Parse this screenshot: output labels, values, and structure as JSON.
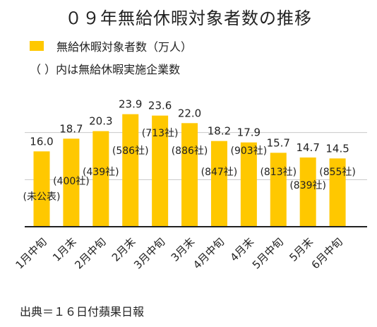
{
  "chart_data": {
    "type": "bar",
    "title": "０９年無給休暇対象者数の推移",
    "legend": [
      {
        "name": "無給休暇対象者数（万人）",
        "color": "#ffc800"
      }
    ],
    "note": "（ ）内は無給休暇実施企業数",
    "categories": [
      "1月中旬",
      "1月末",
      "2月中旬",
      "2月末",
      "3月中旬",
      "3月末",
      "4月中旬",
      "4月末",
      "5月中旬",
      "5月末",
      "6月中旬"
    ],
    "series": [
      {
        "name": "無給休暇対象者数（万人）",
        "values": [
          16.0,
          18.7,
          20.3,
          23.9,
          23.6,
          22.0,
          18.2,
          17.9,
          15.7,
          14.7,
          14.5
        ],
        "value_labels": [
          "16.0",
          "18.7",
          "20.3",
          "23.9",
          "23.6",
          "22.0",
          "18.2",
          "17.9",
          "15.7",
          "14.7",
          "14.5"
        ]
      }
    ],
    "company_labels": [
      "(未公表)",
      "(400社)",
      "(439社)",
      "(586社)",
      "(713社)",
      "(886社)",
      "(847社)",
      "(903社)",
      "(813社)",
      "(839社)",
      "(855社)"
    ],
    "ylim": [
      0,
      30
    ],
    "gridlines": [
      10,
      20
    ],
    "bar_color": "#ffc800",
    "grid": true
  },
  "footer": {
    "source": "出典＝１６日付蘋果日報"
  }
}
